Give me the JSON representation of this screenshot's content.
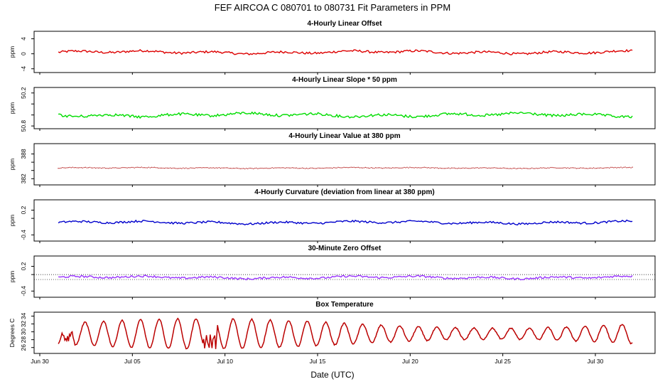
{
  "title": "FEF   AIRCOA C   080701 to 080731   Fit Parameters in PPM",
  "chart_data": {
    "type": "line",
    "xlabel": "Date (UTC)",
    "xaxis": {
      "range": [
        "2008-06-30",
        "2008-08-03"
      ],
      "ticks": [
        {
          "date": "2008-06-30",
          "label": "Jun 30"
        },
        {
          "date": "2008-07-05",
          "label": "Jul 05"
        },
        {
          "date": "2008-07-10",
          "label": "Jul 10"
        },
        {
          "date": "2008-07-15",
          "label": "Jul 15"
        },
        {
          "date": "2008-07-20",
          "label": "Jul 20"
        },
        {
          "date": "2008-07-25",
          "label": "Jul 25"
        },
        {
          "date": "2008-07-30",
          "label": "Jul 30"
        }
      ],
      "data_range": [
        "2008-07-01",
        "2008-08-01"
      ]
    },
    "panels": [
      {
        "title": "4-Hourly Linear Offset",
        "ylabel": "ppm",
        "ylim": [
          -5,
          6
        ],
        "yticks": [
          -4,
          0,
          4
        ],
        "yticklabels": [
          "-4",
          "0",
          "4"
        ],
        "color": "#dd0000",
        "style": "line",
        "level": 0.4,
        "variation": 0.5,
        "reflines": []
      },
      {
        "title": "4-Hourly Linear Slope * 50 ppm",
        "ylabel": "ppm",
        "ylim": [
          50.85,
          50.1
        ],
        "yticks": [
          50.2,
          50.4,
          50.6,
          50.8
        ],
        "yticklabels": [
          "50.2",
          "",
          "",
          "50.8"
        ],
        "color": "#00dd00",
        "style": "line",
        "level": 50.6,
        "variation": 0.04,
        "reflines": []
      },
      {
        "title": "4-Hourly Linear Value at 380 ppm",
        "ylabel": "ppm",
        "ylim": [
          380.5,
          390.5
        ],
        "yticks": [
          382,
          384,
          386,
          388
        ],
        "yticklabels": [
          "382",
          "",
          "",
          "388"
        ],
        "color": "#aa0000",
        "style": "dots",
        "level": 384.6,
        "variation": 0.15,
        "reflines": []
      },
      {
        "title": "4-Hourly Curvature (deviation from linear at 380 ppm)",
        "ylabel": "ppm",
        "ylim": [
          -0.55,
          0.45
        ],
        "yticks": [
          -0.4,
          0,
          0.2
        ],
        "yticklabels": [
          "-0.4",
          "",
          "0.2"
        ],
        "color": "#0000cc",
        "style": "line",
        "level": -0.1,
        "variation": 0.04,
        "reflines": []
      },
      {
        "title": "30-Minute Zero Offset",
        "ylabel": "ppm",
        "ylim": [
          -0.55,
          0.45
        ],
        "yticks": [
          -0.4,
          0,
          0.2
        ],
        "yticklabels": [
          "-0.4",
          "",
          "0.2"
        ],
        "color": "#9933ff",
        "style": "line",
        "level": -0.07,
        "variation": 0.04,
        "reflines": [
          0,
          -0.12
        ]
      },
      {
        "title": "Box Temperature",
        "ylabel": "Degrees C",
        "ylim": [
          24.5,
          35
        ],
        "yticks": [
          26,
          28,
          30,
          32,
          34
        ],
        "yticklabels": [
          "26",
          "28",
          "30",
          "32",
          "34"
        ],
        "color": "#bb0000",
        "style": "diurnal",
        "level": 29.5,
        "variation": 3.5,
        "reflines": []
      }
    ],
    "grid": false,
    "legend": "none"
  }
}
